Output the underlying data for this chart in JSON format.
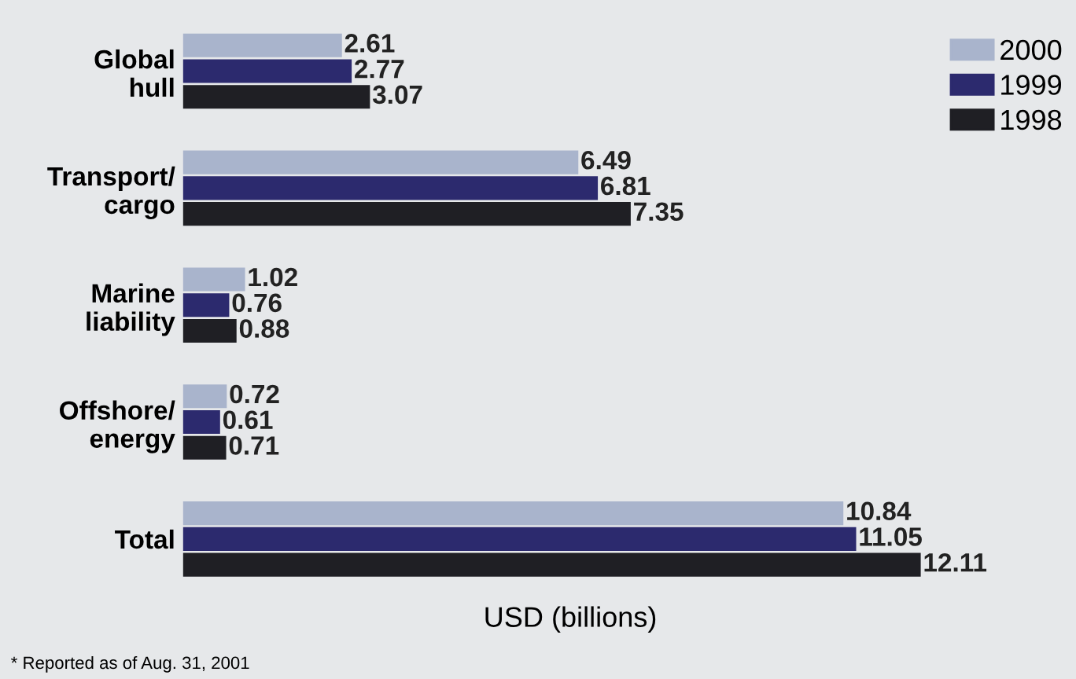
{
  "chart_data": {
    "type": "bar",
    "orientation": "horizontal",
    "categories": [
      "Global\nhull",
      "Transport/\ncargo",
      "Marine\nliability",
      "Offshore/\nenergy",
      "Total"
    ],
    "series": [
      {
        "name": "2000",
        "color": "#a9b4cc",
        "values": [
          2.61,
          6.49,
          1.02,
          0.72,
          10.84
        ]
      },
      {
        "name": "1999",
        "color": "#2c2a6e",
        "values": [
          2.77,
          6.81,
          0.76,
          0.61,
          11.05
        ]
      },
      {
        "name": "1998",
        "color": "#1f1f24",
        "values": [
          3.07,
          7.35,
          0.88,
          0.71,
          12.11
        ]
      }
    ],
    "xlabel": "USD (billions)",
    "annotations": [
      "* Reported as of Aug. 31, 2001"
    ],
    "data_labels": true,
    "legend": "top right",
    "grid": false,
    "tick_labels": "y"
  }
}
